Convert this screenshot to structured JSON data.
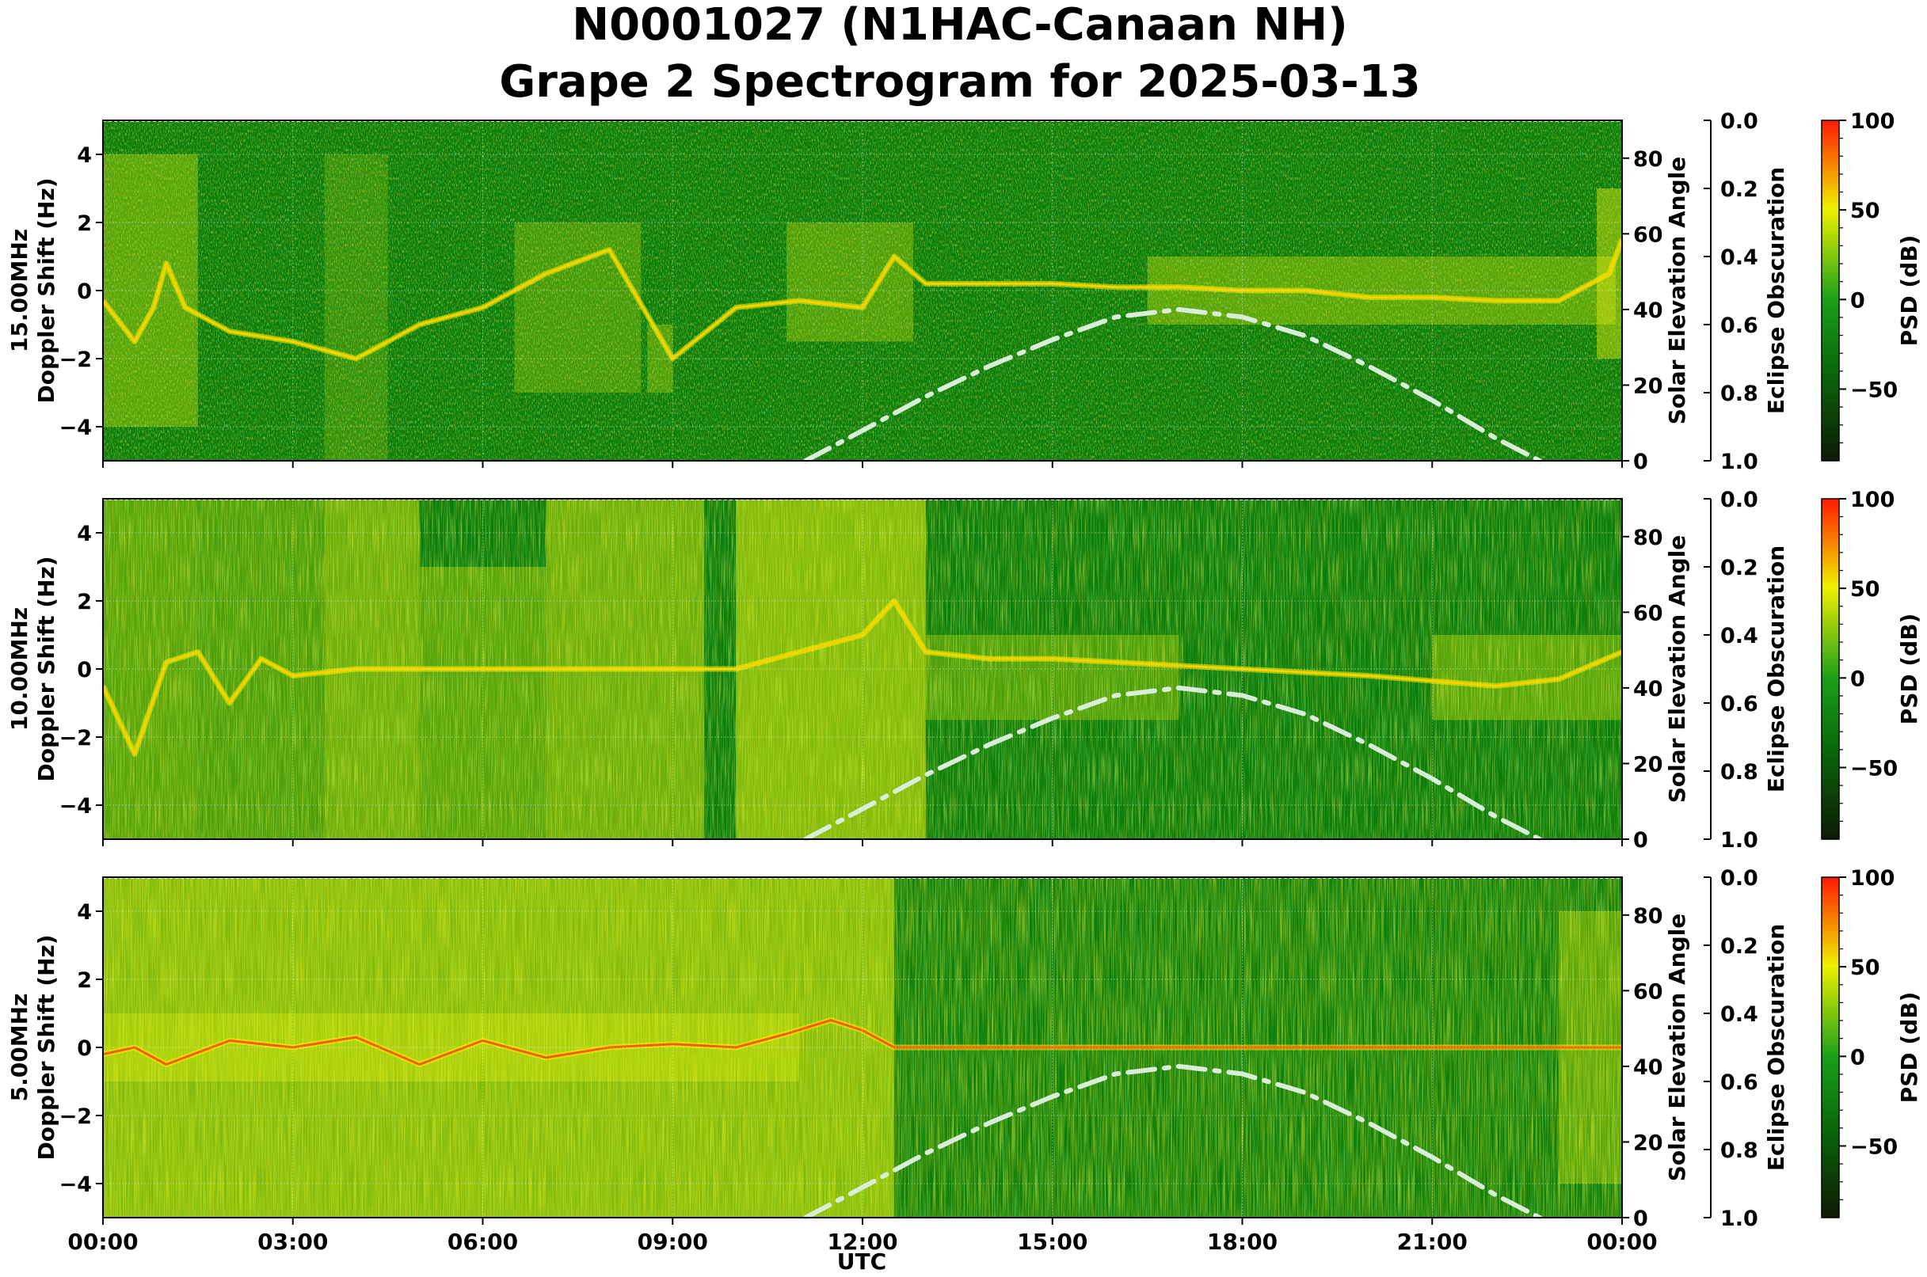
{
  "figure": {
    "title_line1": "N0001027 (N1HAC-Canaan NH)",
    "title_line2": "Grape 2 Spectrogram for 2025-03-13",
    "xlabel": "UTC",
    "x_ticks": [
      "00:00",
      "03:00",
      "06:00",
      "09:00",
      "12:00",
      "15:00",
      "18:00",
      "21:00",
      "00:00"
    ]
  },
  "axes": {
    "doppler_label": "Doppler Shift (Hz)",
    "doppler_ticks": [
      "4",
      "2",
      "0",
      "−2",
      "−4"
    ],
    "elevation_label": "Solar Elevation Angle",
    "elevation_ticks": [
      "0",
      "20",
      "40",
      "60",
      "80"
    ],
    "eclipse_label": "Eclipse Obscuration",
    "eclipse_ticks": [
      "0.0",
      "0.2",
      "0.4",
      "0.6",
      "0.8",
      "1.0"
    ],
    "psd_label": "PSD (dB)",
    "psd_ticks": [
      "100",
      "50",
      "0",
      "−50"
    ]
  },
  "colors": {
    "psd_low": "#0d1a05",
    "psd_mid": "#0a7a0a",
    "psd_yellow": "#f0f000",
    "psd_high": "#ff1a00",
    "solar_curve": "#d9eed9"
  },
  "chart_data": [
    {
      "type": "heatmap",
      "panel": "15.00MHz",
      "freq_label": "15.00MHz",
      "x_range_hours": [
        0,
        24
      ],
      "doppler_range_hz": [
        -5,
        5
      ],
      "elevation_range_deg": [
        0,
        90
      ],
      "eclipse_range": [
        0.0,
        1.0
      ],
      "psd_range_db": [
        -90,
        100
      ],
      "grid": true,
      "solar_elevation": {
        "hours": [
          11.1,
          12,
          13,
          14,
          15,
          16,
          17,
          18,
          19,
          20,
          21,
          22,
          22.7
        ],
        "degrees": [
          0,
          8,
          17,
          25,
          32,
          38,
          40,
          38,
          33,
          25,
          16,
          6,
          0
        ]
      },
      "doppler_trace": {
        "hours": [
          0,
          0.5,
          0.8,
          1.0,
          1.3,
          2,
          3,
          4,
          5,
          6,
          7,
          8,
          9,
          10,
          11,
          12,
          12.5,
          13,
          14,
          15,
          16,
          17,
          18,
          19,
          20,
          21,
          22,
          23,
          23.8,
          24
        ],
        "doppler_hz": [
          -0.3,
          -1.5,
          -0.5,
          0.8,
          -0.5,
          -1.2,
          -1.5,
          -2.0,
          -1.0,
          -0.5,
          0.5,
          1.2,
          -2.0,
          -0.5,
          -0.3,
          -0.5,
          1.0,
          0.2,
          0.2,
          0.2,
          0.1,
          0.1,
          0.0,
          0.0,
          -0.2,
          -0.2,
          -0.3,
          -0.3,
          0.5,
          1.5
        ]
      }
    },
    {
      "type": "heatmap",
      "panel": "10.00MHz",
      "freq_label": "10.00MHz",
      "x_range_hours": [
        0,
        24
      ],
      "doppler_range_hz": [
        -5,
        5
      ],
      "elevation_range_deg": [
        0,
        90
      ],
      "eclipse_range": [
        0.0,
        1.0
      ],
      "psd_range_db": [
        -90,
        100
      ],
      "grid": true,
      "solar_elevation": {
        "hours": [
          11.1,
          12,
          13,
          14,
          15,
          16,
          17,
          18,
          19,
          20,
          21,
          22,
          22.7
        ],
        "degrees": [
          0,
          8,
          17,
          25,
          32,
          38,
          40,
          38,
          33,
          25,
          16,
          6,
          0
        ]
      },
      "doppler_trace": {
        "hours": [
          0,
          0.5,
          1.0,
          1.5,
          2,
          2.5,
          3,
          4,
          6,
          8,
          10,
          11,
          12,
          12.5,
          13,
          14,
          15,
          16,
          17,
          18,
          20,
          22,
          23,
          24
        ],
        "doppler_hz": [
          -0.5,
          -2.5,
          0.2,
          0.5,
          -1.0,
          0.3,
          -0.2,
          0.0,
          0.0,
          0.0,
          0.0,
          0.5,
          1.0,
          2.0,
          0.5,
          0.3,
          0.3,
          0.2,
          0.1,
          0.0,
          -0.2,
          -0.5,
          -0.3,
          0.5
        ]
      }
    },
    {
      "type": "heatmap",
      "panel": "5.00MHz",
      "freq_label": "5.00MHz",
      "x_range_hours": [
        0,
        24
      ],
      "doppler_range_hz": [
        -5,
        5
      ],
      "elevation_range_deg": [
        0,
        90
      ],
      "eclipse_range": [
        0.0,
        1.0
      ],
      "psd_range_db": [
        -90,
        100
      ],
      "grid": true,
      "solar_elevation": {
        "hours": [
          11.1,
          12,
          13,
          14,
          15,
          16,
          17,
          18,
          19,
          20,
          21,
          22,
          22.7
        ],
        "degrees": [
          0,
          8,
          17,
          25,
          32,
          38,
          40,
          38,
          33,
          25,
          16,
          6,
          0
        ]
      },
      "doppler_trace": {
        "hours": [
          0,
          0.5,
          1,
          2,
          3,
          4,
          5,
          6,
          7,
          8,
          9,
          10,
          10.8,
          11.5,
          12,
          12.5,
          13,
          15,
          18,
          21,
          24
        ],
        "doppler_hz": [
          -0.2,
          0.0,
          -0.5,
          0.2,
          0.0,
          0.3,
          -0.5,
          0.2,
          -0.3,
          0.0,
          0.1,
          0.0,
          0.4,
          0.8,
          0.5,
          0.0,
          0.0,
          0.0,
          0.0,
          0.0,
          0.0
        ]
      }
    }
  ]
}
